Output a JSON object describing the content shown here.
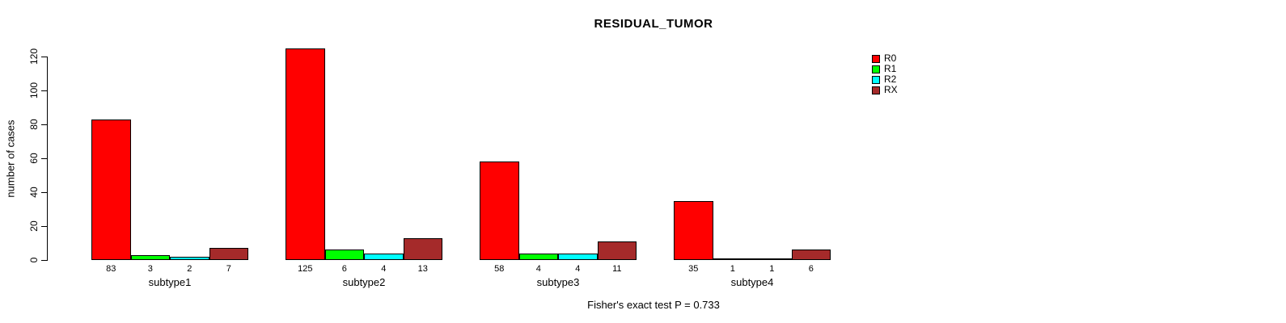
{
  "chart_data": {
    "type": "bar",
    "title": "RESIDUAL_TUMOR",
    "xlabel": "",
    "ylabel": "number of cases",
    "categories": [
      "subtype1",
      "subtype2",
      "subtype3",
      "subtype4"
    ],
    "series": [
      {
        "name": "R0",
        "color": "#FF0000",
        "values": [
          83,
          125,
          58,
          35
        ]
      },
      {
        "name": "R1",
        "color": "#00FF00",
        "values": [
          3,
          6,
          4,
          1
        ]
      },
      {
        "name": "R2",
        "color": "#00FFFF",
        "values": [
          2,
          4,
          4,
          1
        ]
      },
      {
        "name": "RX",
        "color": "#A52A2A",
        "values": [
          7,
          13,
          11,
          6
        ]
      }
    ],
    "yticks": [
      0,
      20,
      40,
      60,
      80,
      100,
      120
    ],
    "ylim": [
      0,
      120
    ],
    "grid": false,
    "legend_position": "top-right",
    "bar_value_labels": true,
    "annotation": "Fisher's exact test P = 0.733",
    "colors": {
      "axis": "#000000",
      "text": "#000000",
      "background": "#FFFFFF"
    }
  }
}
